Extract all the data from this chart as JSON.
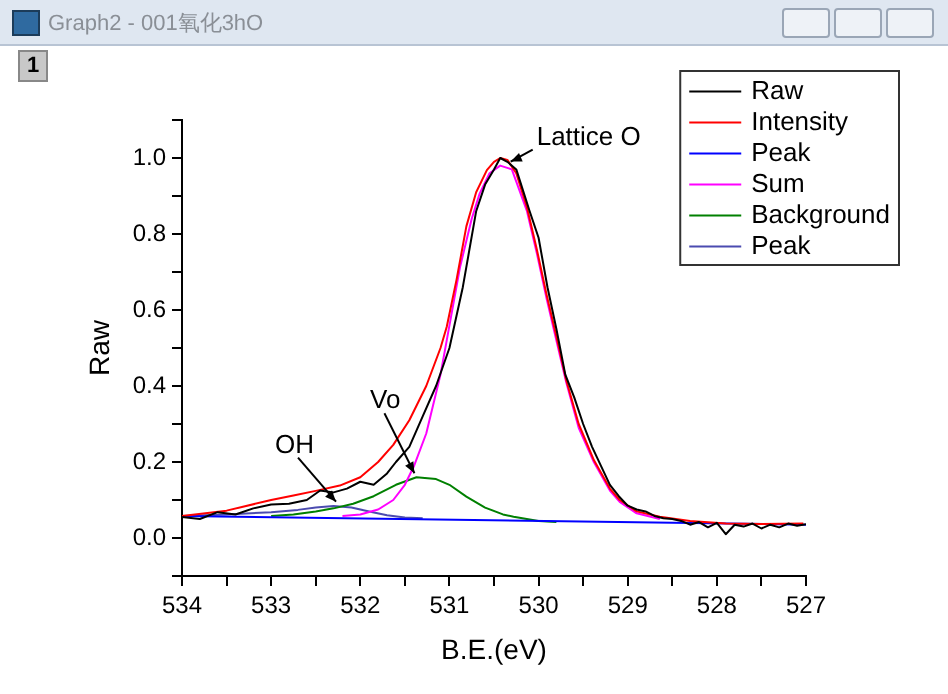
{
  "chart_data": {
    "type": "line",
    "title": "Graph2 - 001氧化3hO",
    "xlabel": "B.E.(eV)",
    "ylabel": "Raw",
    "xlim": [
      534,
      527
    ],
    "xticks": [
      534,
      {
        "value": 533.5,
        "label": null
      },
      533,
      {
        "value": 532.5,
        "label": null
      },
      532,
      {
        "value": 531.5,
        "label": null
      },
      531,
      {
        "value": 530.5,
        "label": null
      },
      530,
      {
        "value": 529.5,
        "label": null
      },
      529,
      {
        "value": 528.5,
        "label": null
      },
      528,
      {
        "value": 527.5,
        "label": null
      },
      527
    ],
    "ylim": [
      -0.1,
      1.1
    ],
    "yticks": [
      {
        "value": -0.1,
        "label": null
      },
      {
        "value": 0,
        "label": "0.0"
      },
      {
        "value": 0.1,
        "label": null
      },
      {
        "value": 0.2,
        "label": "0.2"
      },
      {
        "value": 0.3,
        "label": null
      },
      {
        "value": 0.4,
        "label": "0.4"
      },
      {
        "value": 0.5,
        "label": null
      },
      {
        "value": 0.6,
        "label": "0.6"
      },
      {
        "value": 0.7,
        "label": null
      },
      {
        "value": 0.8,
        "label": "0.8"
      },
      {
        "value": 0.9,
        "label": null
      },
      {
        "value": 1.0,
        "label": "1.0"
      },
      {
        "value": 1.1,
        "label": null
      }
    ],
    "grid": false,
    "legend": "top right",
    "marker": "none",
    "line_style": "solid",
    "annotations": [
      "1",
      {
        "text": "Lattice O",
        "x": 530.38,
        "y": 0.98
      },
      {
        "text": "Vo",
        "x": 531.37,
        "y": 0.16
      },
      {
        "text": "OH",
        "x": 532.25,
        "y": 0.085
      }
    ],
    "series": [
      {
        "name": "Raw",
        "color": "#000000",
        "x": [
          534,
          533.8,
          533.6,
          533.4,
          533.2,
          533,
          532.8,
          532.6,
          532.45,
          532.3,
          532.15,
          532,
          531.85,
          531.7,
          531.6,
          531.45,
          531.3,
          531.15,
          531,
          530.85,
          530.7,
          530.6,
          530.5,
          530.43,
          530.35,
          530.25,
          530.1,
          530,
          529.9,
          529.8,
          529.7,
          529.6,
          529.5,
          529.4,
          529.3,
          529.2,
          529.1,
          529,
          528.9,
          528.8,
          528.7,
          528.6,
          528.5,
          528.4,
          528.3,
          528.2,
          528.1,
          528,
          527.9,
          527.8,
          527.7,
          527.6,
          527.5,
          527.4,
          527.3,
          527.2,
          527.1,
          527
        ],
        "values": [
          0.055,
          0.05,
          0.068,
          0.062,
          0.078,
          0.088,
          0.09,
          0.1,
          0.125,
          0.12,
          0.13,
          0.148,
          0.14,
          0.17,
          0.2,
          0.24,
          0.32,
          0.4,
          0.5,
          0.66,
          0.86,
          0.93,
          0.97,
          1.0,
          0.99,
          0.97,
          0.86,
          0.79,
          0.66,
          0.55,
          0.43,
          0.37,
          0.3,
          0.24,
          0.19,
          0.14,
          0.11,
          0.085,
          0.075,
          0.07,
          0.058,
          0.052,
          0.05,
          0.045,
          0.035,
          0.042,
          0.028,
          0.04,
          0.01,
          0.035,
          0.03,
          0.038,
          0.025,
          0.035,
          0.028,
          0.038,
          0.032,
          0.036
        ]
      },
      {
        "name": "Intensity",
        "color": "#ff0000",
        "x": [
          534,
          533.5,
          533,
          532.75,
          532.5,
          532.23,
          532,
          531.8,
          531.63,
          531.45,
          531.26,
          531.1,
          531.03,
          530.92,
          530.81,
          530.7,
          530.58,
          530.5,
          530.43,
          530.35,
          530.25,
          530.13,
          530.02,
          529.91,
          529.8,
          529.69,
          529.55,
          529.38,
          529.2,
          529.09,
          528.9,
          528.64,
          528.3,
          527.9,
          527.5,
          527.03
        ],
        "values": [
          0.058,
          0.072,
          0.1,
          0.112,
          0.124,
          0.138,
          0.16,
          0.2,
          0.245,
          0.31,
          0.4,
          0.5,
          0.556,
          0.68,
          0.82,
          0.91,
          0.968,
          0.99,
          1.0,
          0.995,
          0.96,
          0.87,
          0.76,
          0.64,
          0.53,
          0.416,
          0.3,
          0.205,
          0.13,
          0.1,
          0.07,
          0.056,
          0.045,
          0.038,
          0.037,
          0.038
        ]
      },
      {
        "name": "Peak",
        "color": "#0000ff",
        "x": [
          534,
          527
        ],
        "values": [
          0.058,
          0.035
        ]
      },
      {
        "name": "Sum",
        "color": "#ff00ff",
        "x": [
          532.2,
          532,
          531.8,
          531.63,
          531.5,
          531.4,
          531.26,
          531.1,
          530.88,
          530.75,
          530.66,
          530.55,
          530.43,
          530.3,
          530.13,
          530.02,
          529.91,
          529.8,
          529.69,
          529.55,
          529.38,
          529.2,
          529.09,
          528.9,
          528.64
        ],
        "values": [
          0.058,
          0.062,
          0.075,
          0.1,
          0.14,
          0.188,
          0.275,
          0.43,
          0.714,
          0.84,
          0.907,
          0.96,
          0.98,
          0.97,
          0.86,
          0.75,
          0.63,
          0.52,
          0.41,
          0.29,
          0.2,
          0.125,
          0.095,
          0.065,
          0.05
        ]
      },
      {
        "name": "Background",
        "color": "#008000",
        "x": [
          533,
          532.75,
          532.5,
          532.3,
          532.08,
          531.85,
          531.6,
          531.37,
          531.15,
          531,
          530.81,
          530.6,
          530.4,
          530.28,
          530,
          529.8
        ],
        "values": [
          0.058,
          0.062,
          0.07,
          0.078,
          0.09,
          0.11,
          0.14,
          0.16,
          0.155,
          0.14,
          0.109,
          0.08,
          0.062,
          0.056,
          0.045,
          0.042
        ]
      },
      {
        "name": "Peak",
        "color": "#4b4bb0",
        "x": [
          534,
          533.5,
          533,
          532.7,
          532.5,
          532.3,
          532.1,
          531.9,
          531.7,
          531.5,
          531.3
        ],
        "values": [
          0.058,
          0.062,
          0.068,
          0.074,
          0.08,
          0.084,
          0.08,
          0.07,
          0.06,
          0.054,
          0.052
        ]
      }
    ]
  }
}
